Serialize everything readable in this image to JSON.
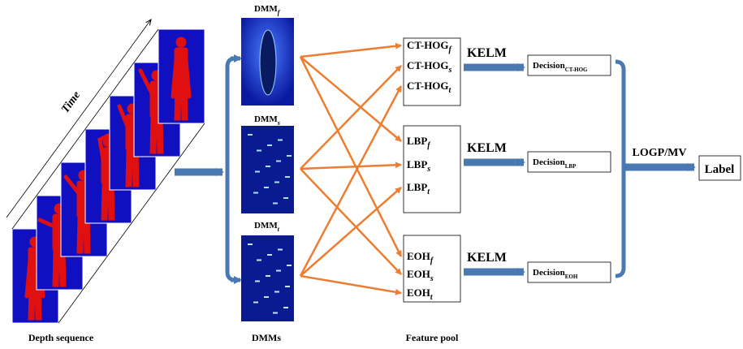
{
  "timeline_label": "Time",
  "bottom_labels": {
    "depth": "Depth sequence",
    "dmms": "DMMs",
    "features": "Feature pool"
  },
  "dmms": [
    {
      "base": "DMM",
      "sub": "f"
    },
    {
      "base": "DMM",
      "sub": "s"
    },
    {
      "base": "DMM",
      "sub": "t"
    }
  ],
  "feature_boxes": [
    {
      "features": [
        {
          "base": "CT-HOG",
          "sub": "f"
        },
        {
          "base": "CT-HOG",
          "sub": "s"
        },
        {
          "base": "CT-HOG",
          "sub": "t"
        }
      ]
    },
    {
      "features": [
        {
          "base": "LBP",
          "sub": "f"
        },
        {
          "base": "LBP",
          "sub": "s"
        },
        {
          "base": "LBP",
          "sub": "t"
        }
      ]
    },
    {
      "features": [
        {
          "base": "EOH",
          "sub": "f"
        },
        {
          "base": "EOH",
          "sub": "s"
        },
        {
          "base": "EOH",
          "sub": "t"
        }
      ]
    }
  ],
  "classifier": [
    "KELM",
    "KELM",
    "KELM"
  ],
  "decisions": [
    {
      "base": "Decision",
      "sub": "CT-HOG"
    },
    {
      "base": "Decision",
      "sub": "LBP"
    },
    {
      "base": "Decision",
      "sub": "EOH"
    }
  ],
  "fusion": "LOGP/MV",
  "output": "Label"
}
